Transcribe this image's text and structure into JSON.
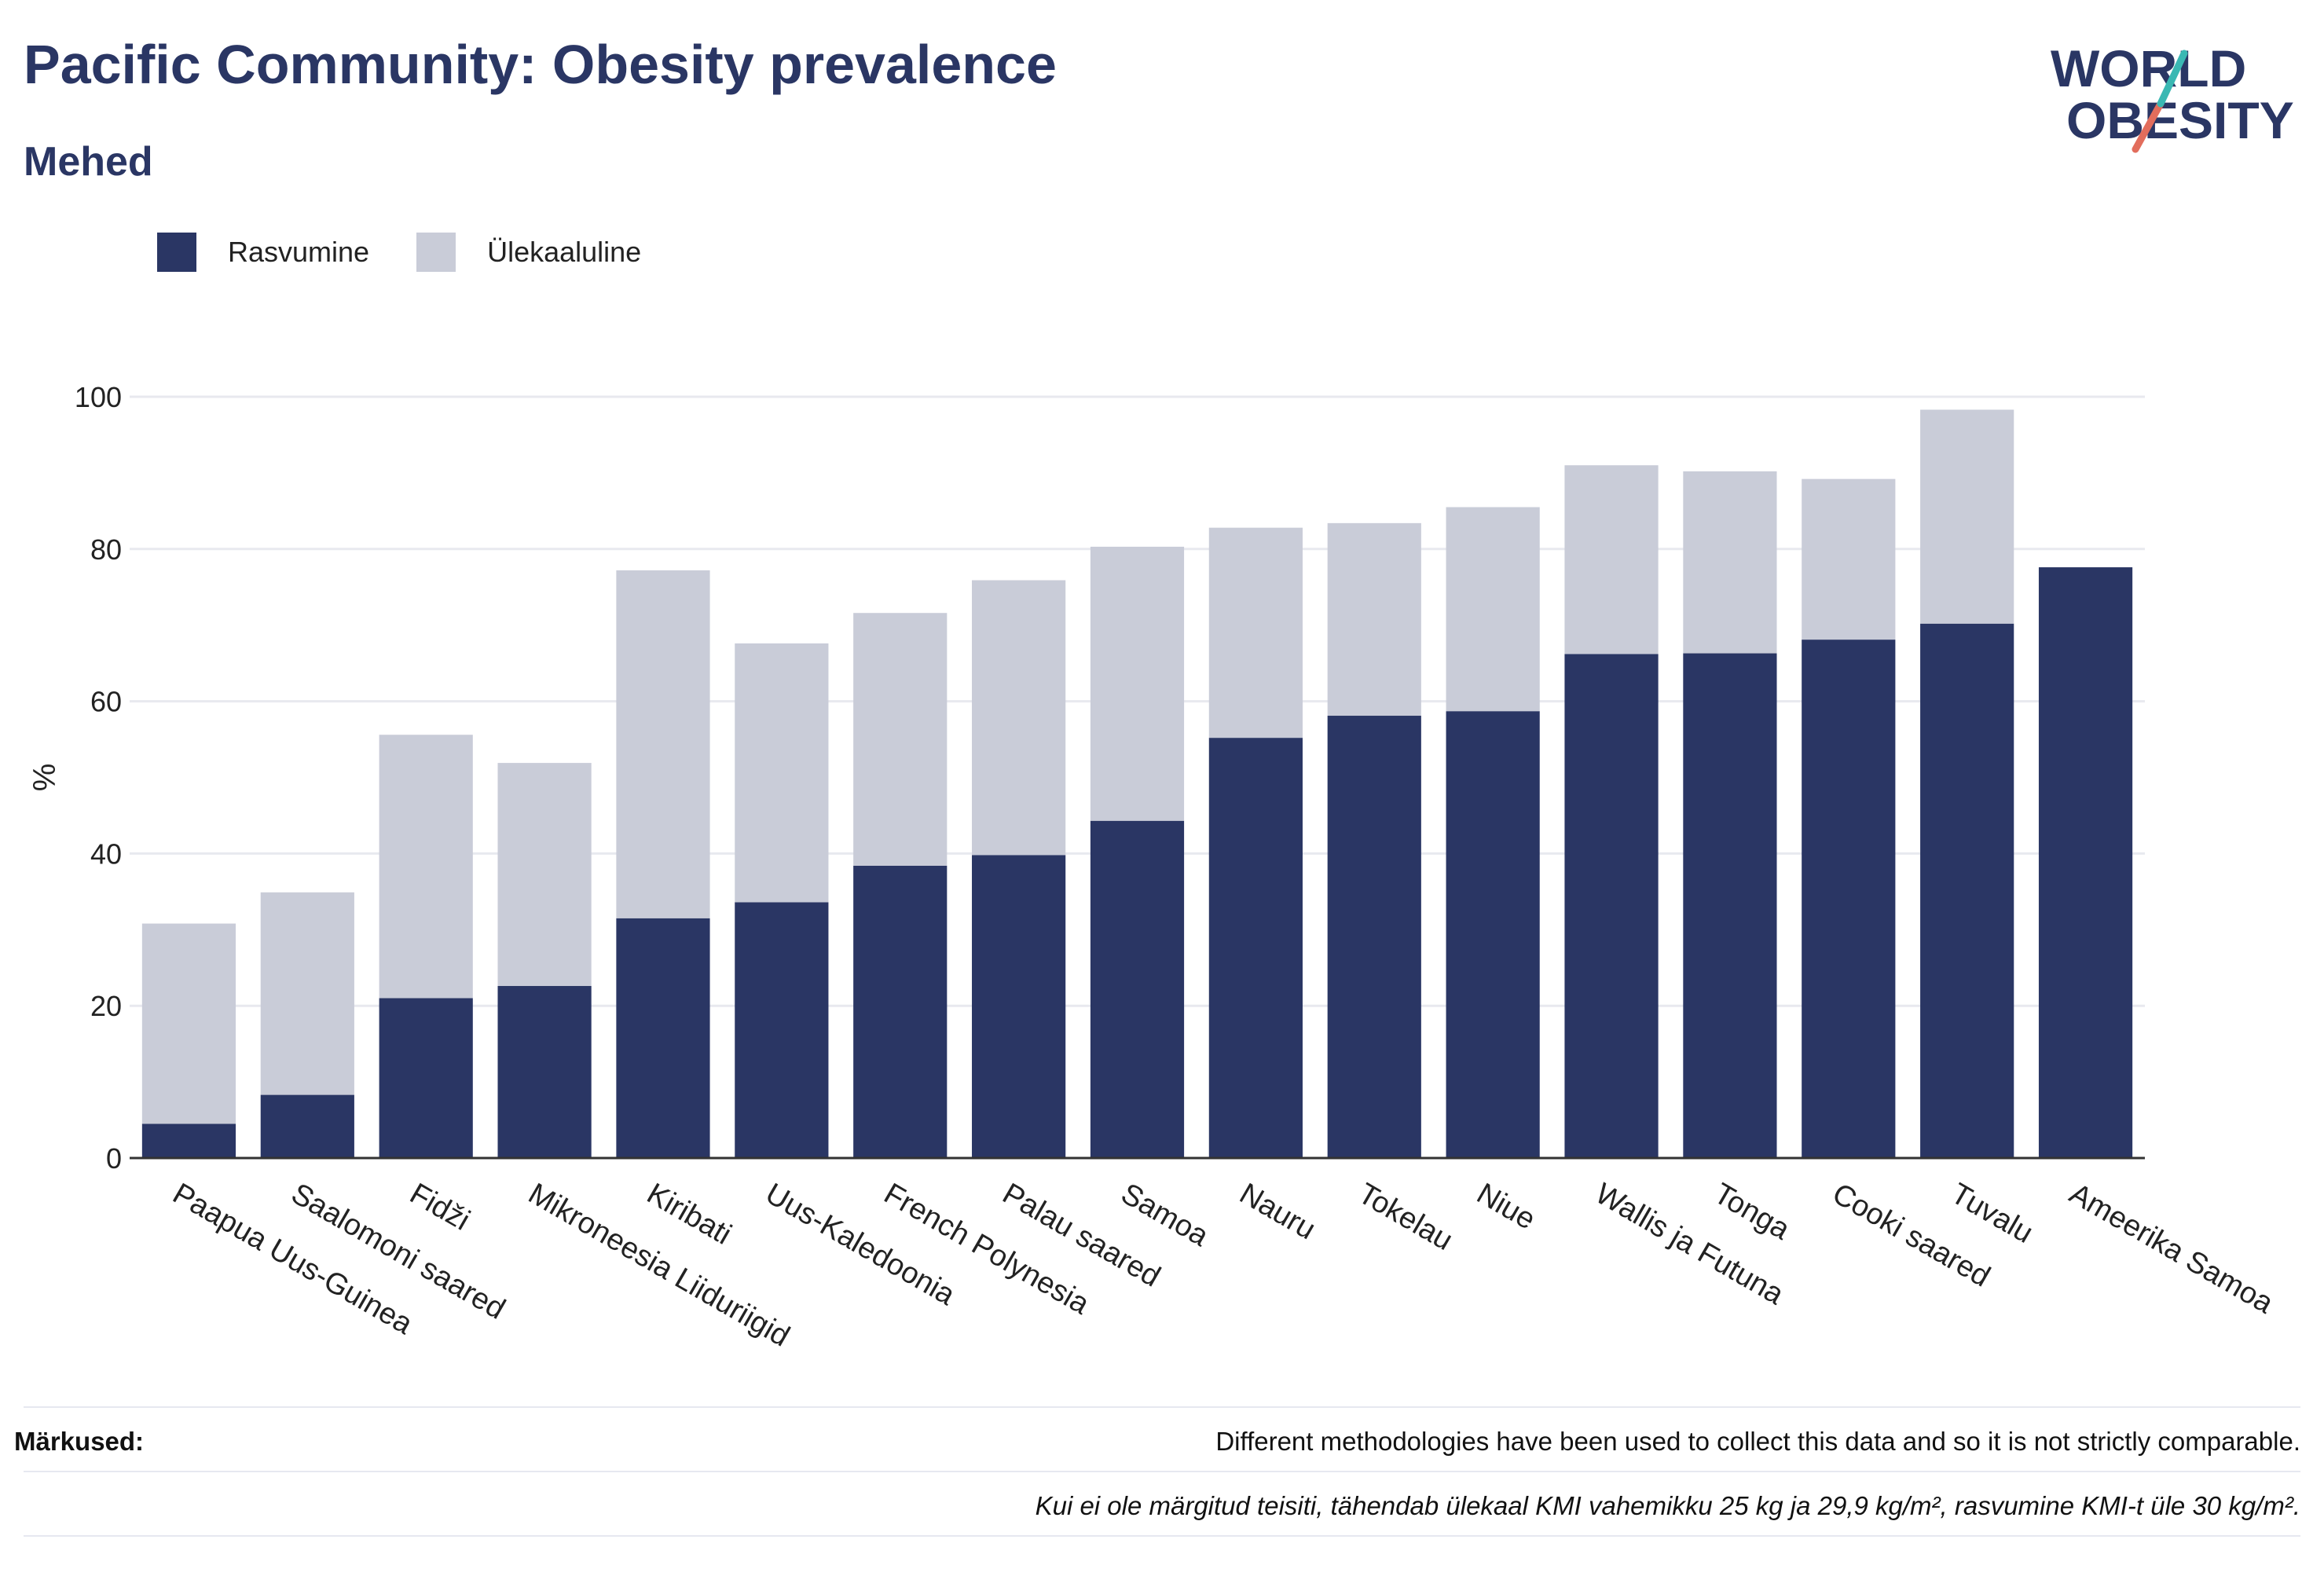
{
  "title": "Pacific Community: Obesity prevalence",
  "subtitle": "Mehed",
  "logo": {
    "line1": "WORLD",
    "line2": "OBESITY"
  },
  "legend": [
    {
      "label": "Rasvumine",
      "color": "#2a3664"
    },
    {
      "label": "Ülekaaluline",
      "color": "#c9ccd8"
    }
  ],
  "colors": {
    "obesity": "#2a3664",
    "overweight": "#c9ccd8",
    "grid": "#e8e9ef",
    "axis": "#333333"
  },
  "notes": {
    "label": "Märkused:",
    "line1": "Different methodologies have been used to collect this data and so it is not strictly comparable.",
    "line2": "Kui ei ole märgitud teisiti, tähendab ülekaal KMI vahemikku 25 kg ja 29,9 kg/m², rasvumine KMI-t üle 30 kg/m²."
  },
  "chart_data": {
    "type": "bar",
    "stacked": true,
    "ylabel": "%",
    "ylim": [
      0,
      100
    ],
    "yticks": [
      0,
      20,
      40,
      60,
      80,
      100
    ],
    "grid": true,
    "legend_position": "top-left",
    "categories": [
      "Paapua Uus-Guinea",
      "Saalomoni saared",
      "Fidži",
      "Mikroneesia Liiduriigid",
      "Kiribati",
      "Uus-Kaledoonia",
      "French Polynesia",
      "Palau saared",
      "Samoa",
      "Nauru",
      "Tokelau",
      "Niue",
      "Wallis ja Futuna",
      "Tonga",
      "Cooki saared",
      "Tuvalu",
      "Ameerika Samoa"
    ],
    "series": [
      {
        "name": "Rasvumine",
        "values": [
          4.5,
          8.3,
          21.0,
          22.6,
          31.5,
          33.6,
          38.4,
          39.8,
          44.3,
          55.2,
          58.1,
          58.7,
          66.2,
          66.3,
          68.1,
          70.2,
          77.6
        ]
      },
      {
        "name": "Ülekaaluline",
        "values": [
          26.3,
          26.6,
          34.6,
          29.3,
          45.7,
          34.0,
          33.2,
          36.1,
          36.0,
          27.6,
          25.3,
          26.8,
          24.8,
          23.9,
          21.1,
          28.1,
          0
        ]
      }
    ]
  }
}
